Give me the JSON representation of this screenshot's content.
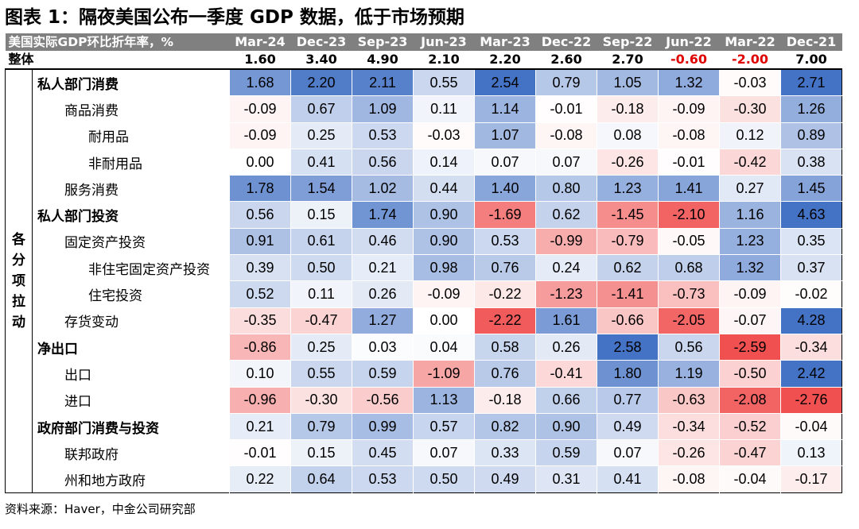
{
  "title": "图表 1：隔夜美国公布一季度 GDP 数据，低于市场预期",
  "header": {
    "label": "美国实际GDP环比折年率，%",
    "periods": [
      "Mar-24",
      "Dec-23",
      "Sep-23",
      "Jun-23",
      "Mar-23",
      "Dec-22",
      "Sep-22",
      "Jun-22",
      "Mar-22",
      "Dec-21"
    ]
  },
  "total": {
    "label": "整体",
    "values": [
      "1.60",
      "3.40",
      "4.90",
      "2.10",
      "2.20",
      "2.60",
      "2.70",
      "-0.60",
      "-2.00",
      "7.00"
    ]
  },
  "side_label": "各分项拉动",
  "rows": [
    {
      "label": "私人部门消费",
      "level": 0,
      "values": [
        "1.68",
        "2.20",
        "2.11",
        "0.55",
        "2.54",
        "0.79",
        "1.05",
        "1.32",
        "-0.03",
        "2.71"
      ]
    },
    {
      "label": "商品消费",
      "level": 1,
      "values": [
        "-0.09",
        "0.67",
        "1.09",
        "0.11",
        "1.14",
        "-0.01",
        "-0.18",
        "-0.09",
        "-0.30",
        "1.26"
      ]
    },
    {
      "label": "耐用品",
      "level": 2,
      "values": [
        "-0.09",
        "0.25",
        "0.53",
        "-0.03",
        "1.07",
        "-0.08",
        "0.08",
        "-0.08",
        "0.12",
        "0.89"
      ]
    },
    {
      "label": "非耐用品",
      "level": 2,
      "values": [
        "0.00",
        "0.41",
        "0.56",
        "0.14",
        "0.07",
        "0.07",
        "-0.26",
        "-0.01",
        "-0.42",
        "0.38"
      ]
    },
    {
      "label": "服务消费",
      "level": 1,
      "values": [
        "1.78",
        "1.54",
        "1.02",
        "0.44",
        "1.40",
        "0.80",
        "1.23",
        "1.41",
        "0.27",
        "1.45"
      ]
    },
    {
      "label": "私人部门投资",
      "level": 0,
      "values": [
        "0.56",
        "0.15",
        "1.74",
        "0.90",
        "-1.69",
        "0.62",
        "-1.45",
        "-2.10",
        "1.16",
        "4.63"
      ]
    },
    {
      "label": "固定资产投资",
      "level": 1,
      "values": [
        "0.91",
        "0.61",
        "0.46",
        "0.90",
        "0.53",
        "-0.99",
        "-0.79",
        "-0.05",
        "1.23",
        "0.35"
      ]
    },
    {
      "label": "非住宅固定资产投资",
      "level": 2,
      "values": [
        "0.39",
        "0.50",
        "0.21",
        "0.98",
        "0.76",
        "0.24",
        "0.62",
        "0.68",
        "1.32",
        "0.37"
      ]
    },
    {
      "label": "住宅投资",
      "level": 2,
      "values": [
        "0.52",
        "0.11",
        "0.26",
        "-0.09",
        "-0.22",
        "-1.23",
        "-1.41",
        "-0.73",
        "-0.09",
        "-0.02"
      ]
    },
    {
      "label": "存货变动",
      "level": 1,
      "values": [
        "-0.35",
        "-0.47",
        "1.27",
        "0.00",
        "-2.22",
        "1.61",
        "-0.66",
        "-2.05",
        "-0.07",
        "4.28"
      ]
    },
    {
      "label": "净出口",
      "level": 0,
      "values": [
        "-0.86",
        "0.25",
        "0.03",
        "0.04",
        "0.58",
        "0.26",
        "2.58",
        "0.56",
        "-2.59",
        "-0.34"
      ]
    },
    {
      "label": "出口",
      "level": 1,
      "values": [
        "0.10",
        "0.55",
        "0.59",
        "-1.09",
        "0.76",
        "-0.41",
        "1.80",
        "1.19",
        "-0.50",
        "2.42"
      ]
    },
    {
      "label": "进口",
      "level": 1,
      "values": [
        "-0.96",
        "-0.30",
        "-0.56",
        "1.13",
        "-0.18",
        "0.66",
        "0.77",
        "-0.63",
        "-2.08",
        "-2.76"
      ]
    },
    {
      "label": "政府部门消费与投资",
      "level": 0,
      "values": [
        "0.21",
        "0.79",
        "0.99",
        "0.57",
        "0.82",
        "0.90",
        "0.49",
        "-0.34",
        "-0.52",
        "-0.04"
      ]
    },
    {
      "label": "联邦政府",
      "level": 1,
      "values": [
        "-0.01",
        "0.15",
        "0.45",
        "0.07",
        "0.33",
        "0.59",
        "0.07",
        "-0.26",
        "-0.47",
        "0.13"
      ]
    },
    {
      "label": "州和地方政府",
      "level": 1,
      "values": [
        "0.22",
        "0.64",
        "0.53",
        "0.50",
        "0.49",
        "0.31",
        "0.41",
        "-0.08",
        "-0.04",
        "-0.17"
      ]
    }
  ],
  "colors": {
    "positive": "#4472c4",
    "negative": "#f05050",
    "neutral": "#ffffff",
    "header_bg": "#808080",
    "negative_text": "#e00000"
  },
  "source": "资料来源：Haver，中金公司研究部"
}
